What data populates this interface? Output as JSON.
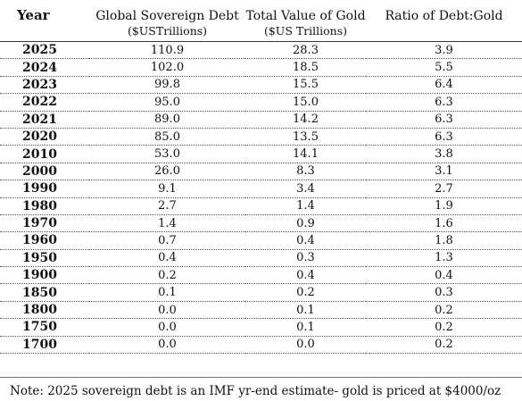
{
  "headers": {
    "year": "Year",
    "debt": "Global Sovereign Debt",
    "debt_unit": "($USTrillions)",
    "gold": "Total Value of Gold",
    "gold_unit": "($US Trillions)",
    "ratio": "Ratio of Debt:Gold"
  },
  "rows": [
    {
      "year": "2025",
      "debt": "110.9",
      "gold": "28.3",
      "ratio": "3.9"
    },
    {
      "year": "2024",
      "debt": "102.0",
      "gold": "18.5",
      "ratio": "5.5"
    },
    {
      "year": "2023",
      "debt": "99.8",
      "gold": "15.5",
      "ratio": "6.4"
    },
    {
      "year": "2022",
      "debt": "95.0",
      "gold": "15.0",
      "ratio": "6.3"
    },
    {
      "year": "2021",
      "debt": "89.0",
      "gold": "14.2",
      "ratio": "6.3"
    },
    {
      "year": "2020",
      "debt": "85.0",
      "gold": "13.5",
      "ratio": "6.3"
    },
    {
      "year": "2010",
      "debt": "53.0",
      "gold": "14.1",
      "ratio": "3.8"
    },
    {
      "year": "2000",
      "debt": "26.0",
      "gold": "8.3",
      "ratio": "3.1"
    },
    {
      "year": "1990",
      "debt": "9.1",
      "gold": "3.4",
      "ratio": "2.7"
    },
    {
      "year": "1980",
      "debt": "2.7",
      "gold": "1.4",
      "ratio": "1.9"
    },
    {
      "year": "1970",
      "debt": "1.4",
      "gold": "0.9",
      "ratio": "1.6"
    },
    {
      "year": "1960",
      "debt": "0.7",
      "gold": "0.4",
      "ratio": "1.8"
    },
    {
      "year": "1950",
      "debt": "0.4",
      "gold": "0.3",
      "ratio": "1.3"
    },
    {
      "year": "1900",
      "debt": "0.2",
      "gold": "0.4",
      "ratio": "0.4"
    },
    {
      "year": "1850",
      "debt": "0.1",
      "gold": "0.2",
      "ratio": "0.3"
    },
    {
      "year": "1800",
      "debt": "0.0",
      "gold": "0.1",
      "ratio": "0.2"
    },
    {
      "year": "1750",
      "debt": "0.0",
      "gold": "0.1",
      "ratio": "0.2"
    },
    {
      "year": "1700",
      "debt": "0.0",
      "gold": "0.0",
      "ratio": "0.2"
    }
  ],
  "note": "Note: 2025 sovereign debt is an IMF yr-end estimate- gold is priced at $4000/oz"
}
